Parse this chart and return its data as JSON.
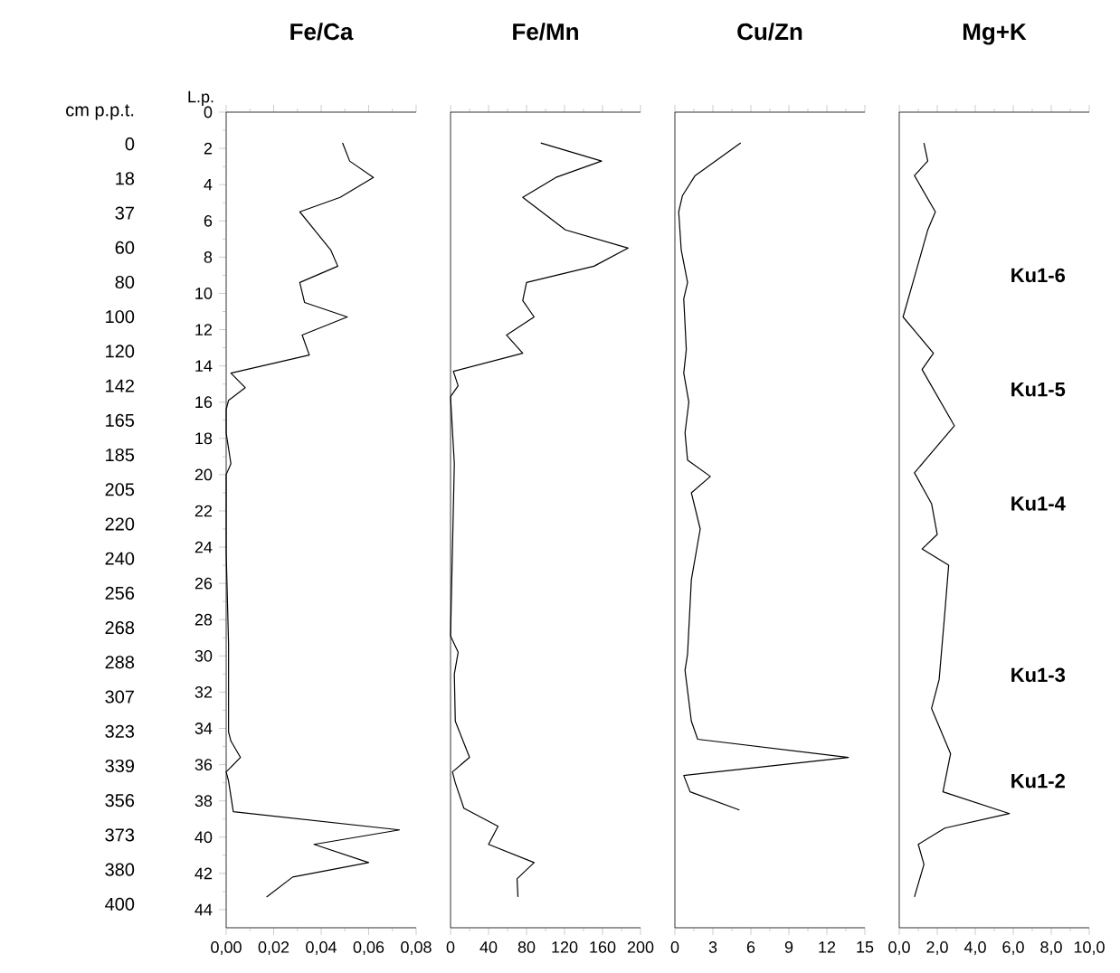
{
  "chart_data": [
    {
      "type": "line",
      "orientation": "horizontal",
      "title": "Fe/Ca",
      "color": "#000000",
      "ylabel": "L.p.",
      "y2label": "cm p.p.t.",
      "x": [
        1.7,
        2.7,
        3.6,
        4.7,
        5.5,
        7.6,
        8.5,
        9.4,
        10.5,
        11.3,
        12.3,
        13.4,
        14.4,
        15.2,
        15.9,
        16.4,
        17.7,
        19.4,
        20.0,
        24.3,
        29.3,
        34.2,
        34.7,
        35.6,
        36.4,
        36.9,
        38.6,
        39.6,
        40.4,
        41.4,
        42.2,
        43.3
      ],
      "values": [
        0.049,
        0.052,
        0.062,
        0.048,
        0.031,
        0.044,
        0.047,
        0.031,
        0.033,
        0.051,
        0.032,
        0.035,
        0.002,
        0.008,
        0.001,
        0,
        0,
        0.002,
        0,
        0,
        0.001,
        0.001,
        0.002,
        0.006,
        0,
        0.001,
        0.003,
        0.073,
        0.037,
        0.06,
        0.028,
        0.017
      ],
      "xlim": [
        0,
        0.08
      ],
      "xticks": [
        {
          "value": 0,
          "label": "0,00"
        },
        {
          "value": 0.01,
          "label": null
        },
        {
          "value": 0.02,
          "label": "0,02"
        },
        {
          "value": 0.03,
          "label": null
        },
        {
          "value": 0.04,
          "label": "0,04"
        },
        {
          "value": 0.05,
          "label": null
        },
        {
          "value": 0.06,
          "label": "0,06"
        },
        {
          "value": 0.07,
          "label": null
        },
        {
          "value": 0.08,
          "label": "0,08"
        }
      ],
      "ylim": [
        45,
        0
      ],
      "yticks": [
        0,
        {
          "value": 1,
          "label": null
        },
        2,
        {
          "value": 3,
          "label": null
        },
        4,
        {
          "value": 5,
          "label": null
        },
        6,
        {
          "value": 7,
          "label": null
        },
        8,
        {
          "value": 9,
          "label": null
        },
        10,
        {
          "value": 11,
          "label": null
        },
        12,
        {
          "value": 13,
          "label": null
        },
        14,
        {
          "value": 15,
          "label": null
        },
        16,
        {
          "value": 17,
          "label": null
        },
        18,
        {
          "value": 19,
          "label": null
        },
        20,
        {
          "value": 21,
          "label": null
        },
        22,
        {
          "value": 23,
          "label": null
        },
        24,
        {
          "value": 25,
          "label": null
        },
        26,
        {
          "value": 27,
          "label": null
        },
        28,
        {
          "value": 29,
          "label": null
        },
        30,
        {
          "value": 31,
          "label": null
        },
        32,
        {
          "value": 33,
          "label": null
        },
        34,
        {
          "value": 35,
          "label": null
        },
        36,
        {
          "value": 37,
          "label": null
        },
        38,
        {
          "value": 39,
          "label": null
        },
        40,
        {
          "value": 41,
          "label": null
        },
        42,
        {
          "value": 43,
          "label": null
        },
        44
      ],
      "y2_categories": [
        "0",
        "18",
        "37",
        "60",
        "80",
        "100",
        "120",
        "142",
        "165",
        "185",
        "205",
        "220",
        "240",
        "256",
        "268",
        "288",
        "307",
        "323",
        "339",
        "356",
        "373",
        "380",
        "400"
      ]
    },
    {
      "type": "line",
      "orientation": "horizontal",
      "title": "Fe/Mn",
      "color": "#000000",
      "tick_labels": "x",
      "x": [
        1.7,
        2.7,
        3.6,
        4.7,
        6.5,
        7.5,
        8.5,
        9.4,
        10.4,
        11.3,
        12.3,
        13.3,
        14.3,
        15.1,
        15.7,
        19.4,
        28.9,
        29.8,
        31.0,
        33.6,
        35.6,
        36.4,
        37.0,
        38.4,
        39.4,
        40.4,
        41.4,
        42.3,
        43.3
      ],
      "values": [
        95,
        159,
        111,
        76,
        121,
        187,
        151,
        80,
        76,
        88,
        59,
        76,
        3,
        8,
        0,
        4,
        0,
        8,
        4,
        5,
        20,
        2,
        5,
        14,
        50,
        40,
        88,
        70,
        71
      ],
      "xlim": [
        0,
        200
      ],
      "xticks": [
        0,
        {
          "value": 20,
          "label": null
        },
        40,
        {
          "value": 60,
          "label": null
        },
        80,
        {
          "value": 100,
          "label": null
        },
        120,
        {
          "value": 140,
          "label": null
        },
        160,
        {
          "value": 180,
          "label": null
        },
        200
      ],
      "ylim": [
        45,
        0
      ]
    },
    {
      "type": "line",
      "orientation": "horizontal",
      "title": "Cu/Zn",
      "color": "#000000",
      "tick_labels": "x",
      "x": [
        1.7,
        3.5,
        4.6,
        5.5,
        7.6,
        9.4,
        10.3,
        13.1,
        14.4,
        16.0,
        17.7,
        19.2,
        20.1,
        21.0,
        23.0,
        25.8,
        29.9,
        30.8,
        33.6,
        34.6,
        35.6,
        36.6,
        37.5,
        38.5
      ],
      "values": [
        5.2,
        1.6,
        0.6,
        0.3,
        0.5,
        1.0,
        0.7,
        0.9,
        0.7,
        1.1,
        0.8,
        1.0,
        2.8,
        1.3,
        2.0,
        1.3,
        1.0,
        0.8,
        1.3,
        1.8,
        13.7,
        0.7,
        1.2,
        5.1
      ],
      "xlim": [
        0,
        15
      ],
      "xticks": [
        0,
        {
          "value": 1.5,
          "label": null
        },
        3,
        {
          "value": 4.5,
          "label": null
        },
        6,
        {
          "value": 7.5,
          "label": null
        },
        9,
        {
          "value": 10.5,
          "label": null
        },
        12,
        {
          "value": 13.5,
          "label": null
        },
        15
      ],
      "ylim": [
        45,
        0
      ]
    },
    {
      "type": "line",
      "orientation": "horizontal",
      "title": "Mg+K",
      "color": "#000000",
      "tick_labels": "x",
      "x": [
        1.7,
        2.7,
        3.5,
        5.5,
        6.5,
        9.1,
        11.3,
        13.3,
        14.2,
        17.3,
        19.9,
        21.6,
        23.3,
        24.1,
        25.0,
        27.6,
        31.3,
        32.9,
        35.4,
        37.5,
        38.7,
        39.5,
        40.4,
        41.5,
        43.3
      ],
      "values": [
        1.3,
        1.5,
        0.8,
        1.9,
        1.5,
        0.8,
        0.2,
        1.8,
        1.2,
        2.9,
        0.8,
        1.7,
        2.0,
        1.2,
        2.6,
        2.4,
        2.1,
        1.7,
        2.7,
        2.3,
        5.8,
        2.4,
        1.0,
        1.3,
        0.8
      ],
      "xlim": [
        0,
        10
      ],
      "xticks": [
        {
          "value": 0,
          "label": "0,0"
        },
        {
          "value": 1,
          "label": null
        },
        {
          "value": 2,
          "label": "2,0"
        },
        {
          "value": 3,
          "label": null
        },
        {
          "value": 4,
          "label": "4,0"
        },
        {
          "value": 5,
          "label": null
        },
        {
          "value": 6,
          "label": "6,0"
        },
        {
          "value": 7,
          "label": null
        },
        {
          "value": 8,
          "label": "8,0"
        },
        {
          "value": 9,
          "label": null
        },
        {
          "value": 10,
          "label": "10,0"
        }
      ],
      "ylim": [
        45,
        0
      ],
      "annotations": [
        "Ku1-6",
        "Ku1-5",
        "Ku1-4",
        "Ku1-3",
        "Ku1-2"
      ]
    }
  ]
}
